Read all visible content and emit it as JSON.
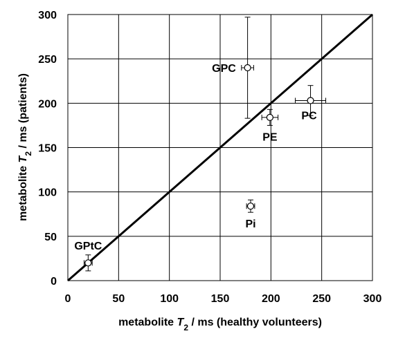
{
  "chart_data": {
    "type": "scatter",
    "xlabel_parts": [
      "metabolite ",
      "T",
      "2",
      " / ms  (healthy volunteers)"
    ],
    "ylabel_parts": [
      "metabolite ",
      "T",
      "2",
      " / ms  (patients)"
    ],
    "xlim": [
      0,
      300
    ],
    "ylim": [
      0,
      300
    ],
    "x_ticks": [
      "0",
      "50",
      "100",
      "150",
      "200",
      "250",
      "300"
    ],
    "y_ticks": [
      "0",
      "50",
      "100",
      "150",
      "200",
      "250",
      "300"
    ],
    "grid": true,
    "identity_line": {
      "from": [
        0,
        0
      ],
      "to": [
        300,
        300
      ]
    },
    "points": [
      {
        "label": "GPtC",
        "x": 20,
        "y": 20,
        "x_err": 4,
        "y_err": 9,
        "label_pos": "top-left"
      },
      {
        "label": "Pi",
        "x": 180,
        "y": 84,
        "x_err": 4,
        "y_err": 7,
        "label_pos": "bottom"
      },
      {
        "label": "PE",
        "x": 199,
        "y": 184,
        "x_err": 8,
        "y_err": 9,
        "label_pos": "bottom"
      },
      {
        "label": "PC",
        "x": 239,
        "y": 203,
        "x_err": 15,
        "y_err": 17,
        "label_pos": "bottom-right"
      },
      {
        "label": "GPC",
        "x": 177,
        "y": 240,
        "x_err": 6,
        "y_err": 57,
        "label_pos": "left"
      }
    ]
  }
}
